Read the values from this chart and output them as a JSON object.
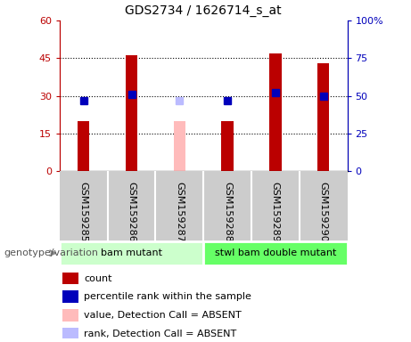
{
  "title": "GDS2734 / 1626714_s_at",
  "samples": [
    "GSM159285",
    "GSM159286",
    "GSM159287",
    "GSM159288",
    "GSM159289",
    "GSM159290"
  ],
  "count_values": [
    20,
    46,
    null,
    20,
    47,
    43
  ],
  "count_absent": [
    null,
    null,
    20,
    null,
    null,
    null
  ],
  "rank_values": [
    47,
    51,
    null,
    47,
    52,
    50
  ],
  "rank_absent": [
    null,
    null,
    47,
    null,
    null,
    null
  ],
  "count_color": "#bb0000",
  "count_absent_color": "#ffbbbb",
  "rank_color": "#0000bb",
  "rank_absent_color": "#bbbbff",
  "ylim_left": [
    0,
    60
  ],
  "ylim_right": [
    0,
    100
  ],
  "yticks_left": [
    0,
    15,
    30,
    45,
    60
  ],
  "ytick_labels_left": [
    "0",
    "15",
    "30",
    "45",
    "60"
  ],
  "yticks_right": [
    0,
    25,
    50,
    75,
    100
  ],
  "ytick_labels_right": [
    "0",
    "25",
    "50",
    "75",
    "100%"
  ],
  "group1_label": "bam mutant",
  "group2_label": "stwl bam double mutant",
  "group1_color": "#ccffcc",
  "group2_color": "#66ff66",
  "genotype_label": "genotype/variation",
  "bar_width": 0.25,
  "marker_size": 6,
  "bg_color": "#cccccc",
  "legend_items": [
    {
      "color": "#bb0000",
      "label": "count"
    },
    {
      "color": "#0000bb",
      "label": "percentile rank within the sample"
    },
    {
      "color": "#ffbbbb",
      "label": "value, Detection Call = ABSENT"
    },
    {
      "color": "#bbbbff",
      "label": "rank, Detection Call = ABSENT"
    }
  ]
}
